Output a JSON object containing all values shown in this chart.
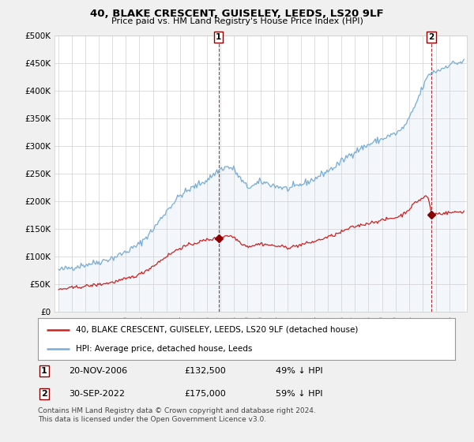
{
  "title": "40, BLAKE CRESCENT, GUISELEY, LEEDS, LS20 9LF",
  "subtitle": "Price paid vs. HM Land Registry's House Price Index (HPI)",
  "sale1_date": "20-NOV-2006",
  "sale1_price": 132500,
  "sale1_year": 2006.875,
  "sale2_date": "30-SEP-2022",
  "sale2_price": 175000,
  "sale2_year": 2022.667,
  "sale1_pct": "49% ↓ HPI",
  "sale2_pct": "59% ↓ HPI",
  "legend_property": "40, BLAKE CRESCENT, GUISELEY, LEEDS, LS20 9LF (detached house)",
  "legend_hpi": "HPI: Average price, detached house, Leeds",
  "footer": "Contains HM Land Registry data © Crown copyright and database right 2024.\nThis data is licensed under the Open Government Licence v3.0.",
  "hpi_color": "#7aadd4",
  "hpi_fill_color": "#deeaf5",
  "property_color": "#cc2222",
  "sale_marker_color": "#8b0000",
  "ylim_min": 0,
  "ylim_max": 500000,
  "ytick_step": 50000,
  "background_color": "#f0f0f0",
  "plot_bg_color": "#ffffff"
}
